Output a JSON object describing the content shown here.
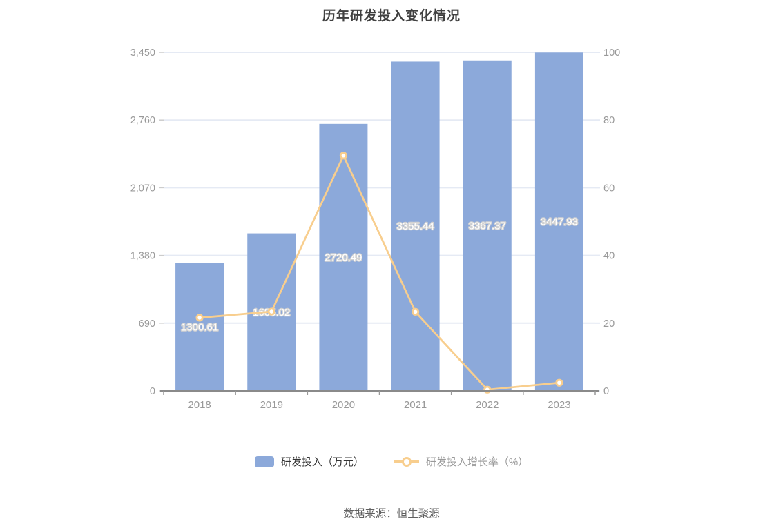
{
  "title": "历年研发投入变化情况",
  "source": "数据来源：恒生聚源",
  "legend": {
    "items": [
      {
        "label": "研发投入（万元）",
        "marker": "bar-swatch"
      },
      {
        "label": "研发投入增长率（%）",
        "marker": "line-swatch"
      }
    ]
  },
  "colors": {
    "bar": "#8CA9DA",
    "line": "#F8CE8E",
    "grid": "#E5EAF4",
    "axis_line": "#8A8A8A",
    "axis_text": "#999999"
  },
  "chart_data": {
    "type": "bar",
    "title": "历年研发投入变化情况",
    "categories": [
      "2018",
      "2019",
      "2020",
      "2021",
      "2022",
      "2023"
    ],
    "series": [
      {
        "name": "研发投入（万元）",
        "type": "bar",
        "axis": "left",
        "values": [
          1300.61,
          1605.02,
          2720.49,
          3355.44,
          3367.37,
          3447.93
        ],
        "labels_visible": true,
        "color": "#8CA9DA"
      },
      {
        "name": "研发投入增长率（%）",
        "type": "line",
        "axis": "right",
        "values": [
          21.6,
          23.41,
          69.5,
          23.34,
          0.36,
          2.39
        ],
        "labels_visible": false,
        "color": "#F8CE8E"
      }
    ],
    "left_axis": {
      "min": 0,
      "max": 3450,
      "tick_values": [
        0,
        690,
        1380,
        2070,
        2760,
        3450
      ],
      "tick_labels": [
        "0",
        "690",
        "1,380",
        "2,070",
        "2,760",
        "3,450"
      ]
    },
    "right_axis": {
      "min": 0,
      "max": 100,
      "tick_values": [
        0,
        20,
        40,
        60,
        80,
        100
      ],
      "tick_labels": [
        "0",
        "20",
        "40",
        "60",
        "80",
        "100"
      ]
    },
    "xlabel": "",
    "ylabel": "",
    "grid": true,
    "legend_position": "bottom"
  }
}
